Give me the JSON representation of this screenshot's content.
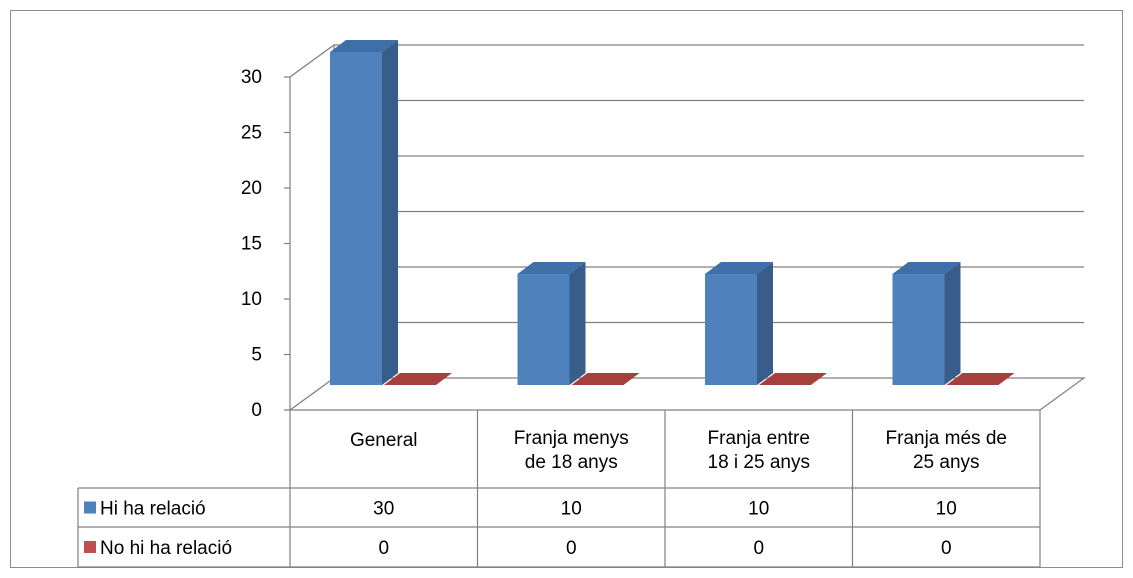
{
  "chart_data": {
    "type": "bar",
    "categories": [
      [
        "General"
      ],
      [
        "Franja menys",
        "de 18 anys"
      ],
      [
        "Franja entre",
        "18 i 25 anys"
      ],
      [
        "Franja més de",
        "25 anys"
      ]
    ],
    "series": [
      {
        "name": "Hi ha relació",
        "values": [
          30,
          10,
          10,
          10
        ],
        "color": "#4F81BD",
        "side_color": "#385D8A",
        "top_color": "#3F6FA8"
      },
      {
        "name": "No hi ha relació",
        "values": [
          0,
          0,
          0,
          0
        ],
        "color": "#C0504D",
        "side_color": "#8C3836",
        "top_color": "#A5403D"
      }
    ],
    "y_ticks": [
      0,
      5,
      10,
      15,
      20,
      25,
      30
    ],
    "ylim": [
      0,
      30
    ],
    "grid": true,
    "three_d": true,
    "legend": "data-table-left",
    "data_table": true,
    "title": "",
    "xlabel": "",
    "ylabel": ""
  }
}
